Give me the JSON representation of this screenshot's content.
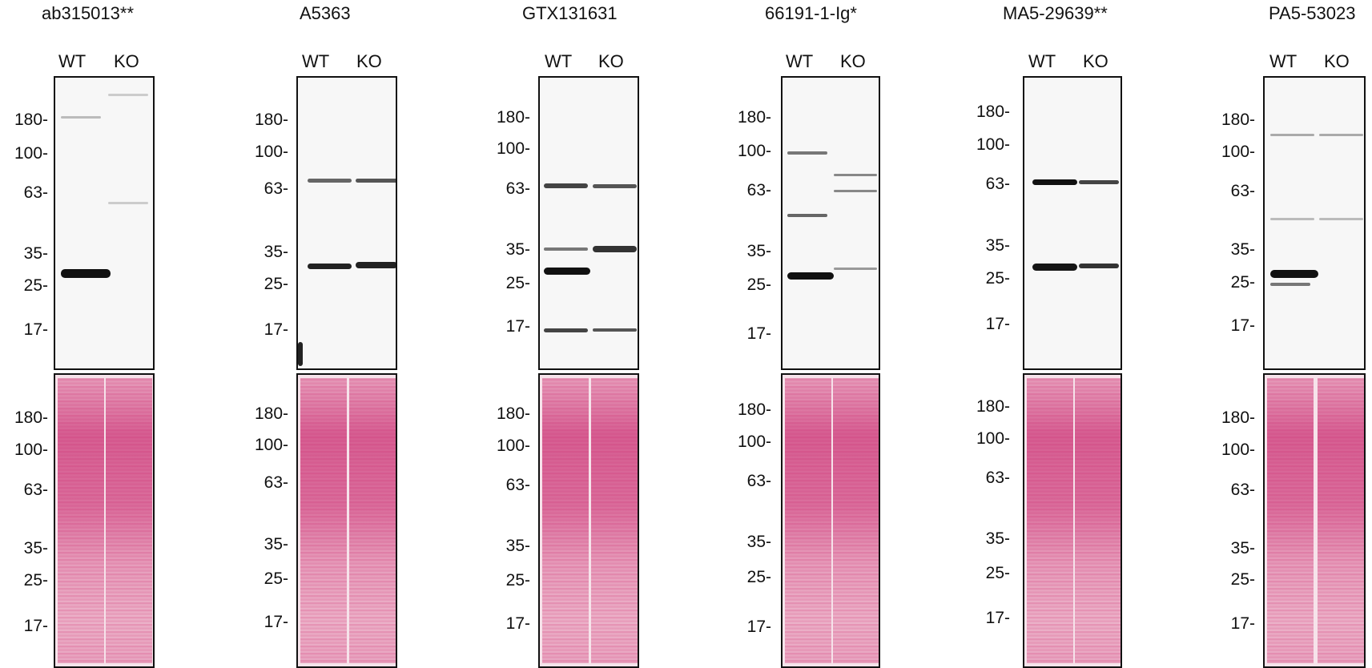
{
  "lanes": [
    "WT",
    "KO"
  ],
  "panels": [
    {
      "antibody": "ab315013**",
      "wb_markers": [
        "180-",
        "100-",
        "63-",
        "35-",
        "25-",
        "17-"
      ],
      "stain_markers": [
        "180-",
        "100-",
        "63-",
        "35-",
        "25-",
        "17-"
      ]
    },
    {
      "antibody": "A5363",
      "wb_markers": [
        "180-",
        "100-",
        "63-",
        "35-",
        "25-",
        "17-"
      ],
      "stain_markers": [
        "180-",
        "100-",
        "63-",
        "35-",
        "25-",
        "17-"
      ]
    },
    {
      "antibody": "GTX131631",
      "wb_markers": [
        "180-",
        "100-",
        "63-",
        "35-",
        "25-",
        "17-"
      ],
      "stain_markers": [
        "180-",
        "100-",
        "63-",
        "35-",
        "25-",
        "17-"
      ]
    },
    {
      "antibody": "66191-1-Ig*",
      "wb_markers": [
        "180-",
        "100-",
        "63-",
        "35-",
        "25-",
        "17-"
      ],
      "stain_markers": [
        "180-",
        "100-",
        "63-",
        "35-",
        "25-",
        "17-"
      ]
    },
    {
      "antibody": "MA5-29639**",
      "wb_markers": [
        "180-",
        "100-",
        "63-",
        "35-",
        "25-",
        "17-"
      ],
      "stain_markers": [
        "180-",
        "100-",
        "63-",
        "35-",
        "25-",
        "17-"
      ]
    },
    {
      "antibody": "PA5-53023",
      "wb_markers": [
        "180-",
        "100-",
        "63-",
        "35-",
        "25-",
        "17-"
      ],
      "stain_markers": [
        "180-",
        "100-",
        "63-",
        "35-",
        "25-",
        "17-"
      ]
    }
  ]
}
